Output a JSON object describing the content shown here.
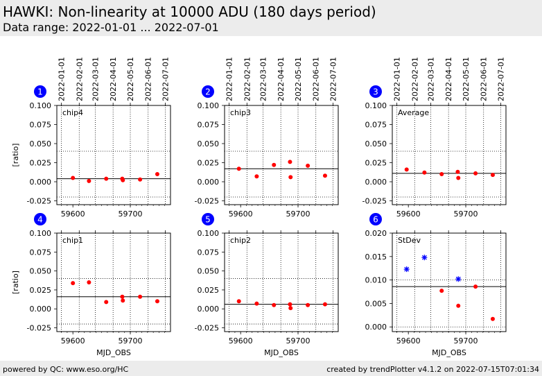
{
  "header": {
    "title": "HAWKI: Non-linearity at 10000 ADU (180 days period)",
    "subtitle": "Data range: 2022-01-01 ... 2022-07-01"
  },
  "footer": {
    "left": "powered by QC: www.eso.org/HC",
    "right": "created by trendPlotter v4.1.2 on 2022-07-15T07:01:34"
  },
  "colors": {
    "marker": "#ff0000",
    "stdev_marker": "#0000ff",
    "badge": "#0000ff"
  },
  "chart_data": [
    {
      "type": "scatter",
      "panel": "1",
      "label": "chip4",
      "ylabel": "[ratio]",
      "xlabel": "",
      "xlim": [
        59572,
        59770
      ],
      "ylim": [
        -0.03,
        0.1
      ],
      "yticks": [
        "0.100",
        "0.075",
        "0.050",
        "0.025",
        "0.000",
        "-0.025"
      ],
      "xticks": [
        "59600",
        "59700"
      ],
      "top_dates": [
        "2022-01-01",
        "2022-02-01",
        "2022-03-01",
        "2022-04-01",
        "2022-05-01",
        "2022-06-01",
        "2022-07-01"
      ],
      "reference_line": 0.004,
      "threshold_lines": [
        0.04,
        -0.02
      ],
      "series": [
        {
          "x": [
            59600,
            59628,
            59658,
            59686,
            59687,
            59717,
            59747
          ],
          "y": [
            0.005,
            0.001,
            0.004,
            0.004,
            0.002,
            0.003,
            0.01
          ]
        }
      ]
    },
    {
      "type": "scatter",
      "panel": "2",
      "label": "chip3",
      "ylabel": "",
      "xlabel": "",
      "xlim": [
        59572,
        59770
      ],
      "ylim": [
        -0.03,
        0.1
      ],
      "yticks": [
        "0.100",
        "0.075",
        "0.050",
        "0.025",
        "0.000",
        "-0.025"
      ],
      "xticks": [
        "59600",
        "59700"
      ],
      "top_dates": [
        "2022-01-01",
        "2022-02-01",
        "2022-03-01",
        "2022-04-01",
        "2022-05-01",
        "2022-06-01",
        "2022-07-01"
      ],
      "reference_line": 0.017,
      "threshold_lines": [
        0.04,
        -0.02
      ],
      "series": [
        {
          "x": [
            59597,
            59628,
            59658,
            59686,
            59687,
            59717,
            59747
          ],
          "y": [
            0.017,
            0.007,
            0.022,
            0.026,
            0.006,
            0.021,
            0.008
          ]
        }
      ]
    },
    {
      "type": "scatter",
      "panel": "3",
      "label": "Average",
      "ylabel": "",
      "xlabel": "",
      "xlim": [
        59572,
        59770
      ],
      "ylim": [
        -0.03,
        0.1
      ],
      "yticks": [
        "0.100",
        "0.075",
        "0.050",
        "0.025",
        "0.000",
        "-0.025"
      ],
      "xticks": [
        "59600",
        "59700"
      ],
      "top_dates": [
        "2022-01-01",
        "2022-02-01",
        "2022-03-01",
        "2022-04-01",
        "2022-05-01",
        "2022-06-01",
        "2022-07-01"
      ],
      "reference_line": 0.011,
      "threshold_lines": [
        0.04,
        -0.02
      ],
      "series": [
        {
          "x": [
            59597,
            59628,
            59658,
            59686,
            59687,
            59717,
            59747
          ],
          "y": [
            0.016,
            0.012,
            0.01,
            0.013,
            0.005,
            0.011,
            0.009
          ]
        }
      ]
    },
    {
      "type": "scatter",
      "panel": "4",
      "label": "chip1",
      "ylabel": "[ratio]",
      "xlabel": "MJD_OBS",
      "xlim": [
        59572,
        59770
      ],
      "ylim": [
        -0.03,
        0.1
      ],
      "yticks": [
        "0.100",
        "0.075",
        "0.050",
        "0.025",
        "0.000",
        "-0.025"
      ],
      "xticks": [
        "59600",
        "59700"
      ],
      "top_dates": [],
      "reference_line": 0.016,
      "threshold_lines": [
        0.04,
        -0.02
      ],
      "series": [
        {
          "x": [
            59600,
            59628,
            59658,
            59686,
            59687,
            59717,
            59747
          ],
          "y": [
            0.034,
            0.035,
            0.009,
            0.016,
            0.011,
            0.016,
            0.01
          ]
        }
      ]
    },
    {
      "type": "scatter",
      "panel": "5",
      "label": "chip2",
      "ylabel": "",
      "xlabel": "MJD_OBS",
      "xlim": [
        59572,
        59770
      ],
      "ylim": [
        -0.03,
        0.1
      ],
      "yticks": [
        "0.100",
        "0.075",
        "0.050",
        "0.025",
        "0.000",
        "-0.025"
      ],
      "xticks": [
        "59600",
        "59700"
      ],
      "top_dates": [],
      "reference_line": 0.006,
      "threshold_lines": [
        0.04,
        -0.02
      ],
      "series": [
        {
          "x": [
            59597,
            59628,
            59658,
            59686,
            59687,
            59717,
            59747
          ],
          "y": [
            0.01,
            0.007,
            0.005,
            0.006,
            0.001,
            0.005,
            0.006
          ]
        }
      ]
    },
    {
      "type": "scatter",
      "panel": "6",
      "label": "StDev",
      "ylabel": "",
      "xlabel": "MJD_OBS",
      "xlim": [
        59572,
        59770
      ],
      "ylim": [
        -0.001,
        0.02
      ],
      "yticks": [
        "0.020",
        "0.015",
        "0.010",
        "0.005",
        "0.000"
      ],
      "xticks": [
        "59600",
        "59700"
      ],
      "top_dates": [],
      "reference_line": 0.0086,
      "threshold_lines": [
        0.01,
        0.0
      ],
      "series": [
        {
          "marker": "dot",
          "x": [
            59658,
            59687,
            59717,
            59747
          ],
          "y": [
            0.0077,
            0.0045,
            0.0086,
            0.0017
          ]
        },
        {
          "marker": "star",
          "x": [
            59597,
            59628,
            59687
          ],
          "y": [
            0.0123,
            0.0148,
            0.0102
          ]
        }
      ]
    }
  ]
}
